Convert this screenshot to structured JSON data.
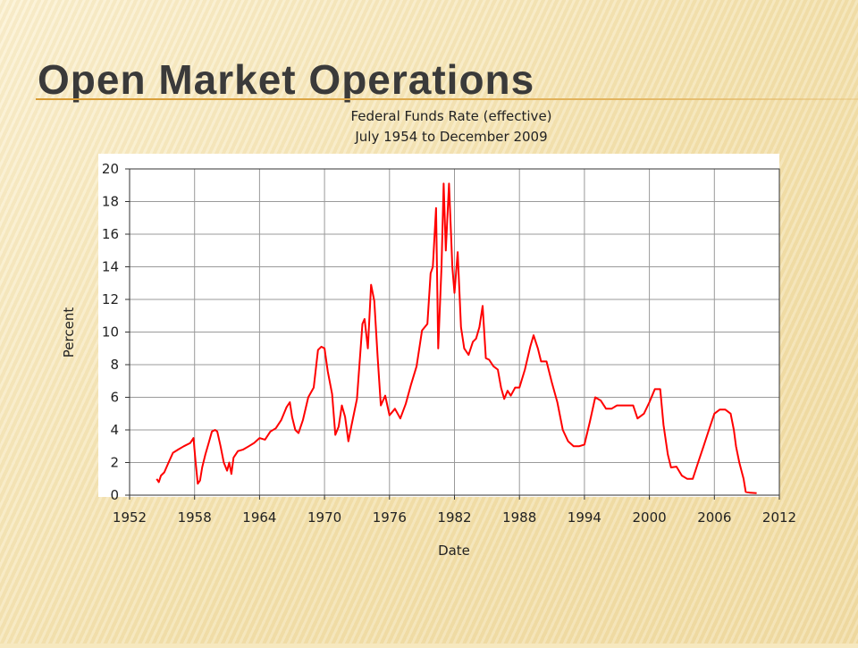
{
  "slide": {
    "title": "Open Market Operations"
  },
  "chart_data": {
    "type": "line",
    "title": "Federal Funds Rate (effective)",
    "subtitle": "July 1954 to December 2009",
    "xlabel": "Date",
    "ylabel": "Percent",
    "xlim": [
      1952,
      2012
    ],
    "ylim": [
      0,
      20
    ],
    "xticks": [
      1952,
      1958,
      1964,
      1970,
      1976,
      1982,
      1988,
      1994,
      2000,
      2006,
      2012
    ],
    "yticks": [
      0,
      2,
      4,
      6,
      8,
      10,
      12,
      14,
      16,
      18,
      20
    ],
    "grid": true,
    "series": [
      {
        "color": "#ff0000",
        "x": [
          1954.5,
          1954.7,
          1954.9,
          1955.2,
          1955.6,
          1956.0,
          1956.5,
          1957.0,
          1957.6,
          1957.9,
          1958.1,
          1958.3,
          1958.5,
          1958.7,
          1959.0,
          1959.3,
          1959.6,
          1959.9,
          1960.1,
          1960.4,
          1960.7,
          1961.0,
          1961.2,
          1961.4,
          1961.6,
          1961.8,
          1962.0,
          1962.5,
          1963.0,
          1963.5,
          1964.0,
          1964.5,
          1965.0,
          1965.5,
          1966.0,
          1966.5,
          1966.8,
          1967.0,
          1967.3,
          1967.6,
          1968.0,
          1968.5,
          1969.0,
          1969.4,
          1969.7,
          1970.0,
          1970.3,
          1970.7,
          1971.0,
          1971.3,
          1971.6,
          1971.9,
          1972.2,
          1972.5,
          1973.0,
          1973.5,
          1973.7,
          1974.0,
          1974.3,
          1974.6,
          1974.9,
          1975.2,
          1975.6,
          1976.0,
          1976.5,
          1977.0,
          1977.5,
          1978.0,
          1978.5,
          1979.0,
          1979.5,
          1979.8,
          1980.0,
          1980.3,
          1980.5,
          1980.8,
          1981.0,
          1981.2,
          1981.5,
          1981.8,
          1982.0,
          1982.3,
          1982.6,
          1982.9,
          1983.3,
          1983.7,
          1984.0,
          1984.3,
          1984.6,
          1984.9,
          1985.2,
          1985.6,
          1986.0,
          1986.3,
          1986.6,
          1986.9,
          1987.2,
          1987.6,
          1988.0,
          1988.5,
          1989.0,
          1989.3,
          1989.7,
          1990.0,
          1990.5,
          1991.0,
          1991.5,
          1992.0,
          1992.5,
          1993.0,
          1993.5,
          1994.0,
          1994.5,
          1995.0,
          1995.5,
          1996.0,
          1996.5,
          1997.0,
          1997.5,
          1998.0,
          1998.5,
          1998.9,
          1999.5,
          2000.0,
          2000.5,
          2001.0,
          2001.3,
          2001.7,
          2002.0,
          2002.5,
          2003.0,
          2003.5,
          2004.0,
          2004.5,
          2005.0,
          2005.5,
          2006.0,
          2006.5,
          2007.0,
          2007.5,
          2007.8,
          2008.0,
          2008.3,
          2008.7,
          2008.9,
          2009.3,
          2009.9
        ],
        "values": [
          1.0,
          0.8,
          1.2,
          1.4,
          2.0,
          2.6,
          2.8,
          3.0,
          3.2,
          3.5,
          2.0,
          0.7,
          0.9,
          1.7,
          2.5,
          3.2,
          3.9,
          4.0,
          3.9,
          3.0,
          2.0,
          1.5,
          2.0,
          1.3,
          2.3,
          2.5,
          2.7,
          2.8,
          3.0,
          3.2,
          3.5,
          3.4,
          3.9,
          4.1,
          4.6,
          5.4,
          5.7,
          4.8,
          4.0,
          3.8,
          4.6,
          6.0,
          6.6,
          8.9,
          9.1,
          9.0,
          7.6,
          6.2,
          3.7,
          4.2,
          5.5,
          4.8,
          3.3,
          4.3,
          5.9,
          10.5,
          10.8,
          9.0,
          12.9,
          11.9,
          8.5,
          5.5,
          6.1,
          4.9,
          5.3,
          4.7,
          5.6,
          6.8,
          7.9,
          10.1,
          10.5,
          13.6,
          14.0,
          17.6,
          9.0,
          14.0,
          19.1,
          15.0,
          19.1,
          14.0,
          12.4,
          14.9,
          10.3,
          9.0,
          8.6,
          9.4,
          9.6,
          10.3,
          11.6,
          8.4,
          8.3,
          7.9,
          7.7,
          6.6,
          5.9,
          6.4,
          6.1,
          6.6,
          6.6,
          7.7,
          9.1,
          9.8,
          9.0,
          8.2,
          8.2,
          6.9,
          5.7,
          4.0,
          3.3,
          3.0,
          3.0,
          3.1,
          4.5,
          6.0,
          5.8,
          5.3,
          5.3,
          5.5,
          5.5,
          5.5,
          5.5,
          4.7,
          5.0,
          5.7,
          6.5,
          6.5,
          4.3,
          2.5,
          1.7,
          1.75,
          1.2,
          1.0,
          1.0,
          2.0,
          3.0,
          4.0,
          5.0,
          5.25,
          5.25,
          5.0,
          4.0,
          3.0,
          2.0,
          1.0,
          0.2,
          0.15,
          0.12
        ]
      }
    ]
  }
}
